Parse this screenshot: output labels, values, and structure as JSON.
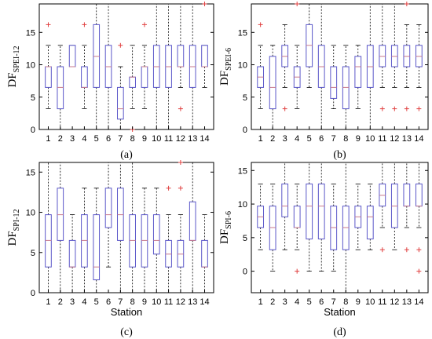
{
  "chart_data": [
    {
      "type": "boxplot",
      "panel_label": "(a)",
      "ylabel_main": "DF",
      "ylabel_sub": "SPEI-12",
      "xlabel": "",
      "categories": [
        "1",
        "2",
        "3",
        "4",
        "5",
        "6",
        "7",
        "8",
        "9",
        "10",
        "11",
        "12",
        "13",
        "14"
      ],
      "ylim": [
        0,
        19.4
      ],
      "yticks": [
        0,
        5,
        10,
        15
      ],
      "boxes": [
        {
          "station": "1",
          "whisker_low": 3.2,
          "q1": 6.5,
          "median": 9.7,
          "q3": 9.7,
          "whisker_high": 13,
          "outliers": [
            16.2
          ]
        },
        {
          "station": "2",
          "whisker_low": 0,
          "q1": 3.2,
          "median": 6.5,
          "q3": 9.7,
          "whisker_high": 13,
          "outliers": []
        },
        {
          "station": "3",
          "whisker_low": 9.7,
          "q1": 9.7,
          "median": 9.7,
          "q3": 13,
          "whisker_high": 13,
          "outliers": []
        },
        {
          "station": "4",
          "whisker_low": 3.2,
          "q1": 6.5,
          "median": 6.5,
          "q3": 9.7,
          "whisker_high": 13,
          "outliers": [
            16.2
          ]
        },
        {
          "station": "5",
          "whisker_low": 0,
          "q1": 6.5,
          "median": 11.3,
          "q3": 16.2,
          "whisker_high": 19.4,
          "outliers": []
        },
        {
          "station": "6",
          "whisker_low": 0,
          "q1": 6.5,
          "median": 9.7,
          "q3": 13,
          "whisker_high": 19.4,
          "outliers": []
        },
        {
          "station": "7",
          "whisker_low": 0,
          "q1": 1.6,
          "median": 3.2,
          "q3": 6.5,
          "whisker_high": 9.7,
          "outliers": [
            13
          ]
        },
        {
          "station": "8",
          "whisker_low": 3.2,
          "q1": 6.5,
          "median": 8.1,
          "q3": 8.1,
          "whisker_high": 13,
          "outliers": [
            0
          ]
        },
        {
          "station": "9",
          "whisker_low": 3.2,
          "q1": 6.5,
          "median": 9.7,
          "q3": 9.7,
          "whisker_high": 13,
          "outliers": [
            16.2
          ]
        },
        {
          "station": "10",
          "whisker_low": 0,
          "q1": 6.5,
          "median": 9.7,
          "q3": 13,
          "whisker_high": 19.4,
          "outliers": []
        },
        {
          "station": "11",
          "whisker_low": 0,
          "q1": 6.5,
          "median": 9.7,
          "q3": 13,
          "whisker_high": 19.4,
          "outliers": []
        },
        {
          "station": "12",
          "whisker_low": 6.5,
          "q1": 9.7,
          "median": 9.7,
          "q3": 13,
          "whisker_high": 19.4,
          "outliers": [
            3.2
          ]
        },
        {
          "station": "13",
          "whisker_low": 0,
          "q1": 6.5,
          "median": 9.7,
          "q3": 13,
          "whisker_high": 19.4,
          "outliers": []
        },
        {
          "station": "14",
          "whisker_low": 6.5,
          "q1": 9.7,
          "median": 9.7,
          "q3": 13,
          "whisker_high": 13,
          "outliers": [
            19.4
          ]
        }
      ]
    },
    {
      "type": "boxplot",
      "panel_label": "(b)",
      "ylabel_main": "DF",
      "ylabel_sub": "SPEI-6",
      "xlabel": "",
      "categories": [
        "1",
        "2",
        "3",
        "4",
        "5",
        "6",
        "7",
        "8",
        "9",
        "10",
        "11",
        "12",
        "13",
        "14"
      ],
      "ylim": [
        0,
        19.4
      ],
      "yticks": [
        0,
        5,
        10,
        15
      ],
      "boxes": [
        {
          "station": "1",
          "whisker_low": 3.2,
          "q1": 6.5,
          "median": 8.1,
          "q3": 9.7,
          "whisker_high": 13,
          "outliers": [
            16.2
          ]
        },
        {
          "station": "2",
          "whisker_low": 0,
          "q1": 3.2,
          "median": 6.5,
          "q3": 11.3,
          "whisker_high": 13,
          "outliers": []
        },
        {
          "station": "3",
          "whisker_low": 6.5,
          "q1": 9.7,
          "median": 11.3,
          "q3": 13,
          "whisker_high": 16.2,
          "outliers": [
            3.2
          ]
        },
        {
          "station": "4",
          "whisker_low": 3.2,
          "q1": 6.5,
          "median": 8.1,
          "q3": 9.7,
          "whisker_high": 13,
          "outliers": [
            19.4
          ]
        },
        {
          "station": "5",
          "whisker_low": 6.5,
          "q1": 9.7,
          "median": 13,
          "q3": 16.2,
          "whisker_high": 19.4,
          "outliers": []
        },
        {
          "station": "6",
          "whisker_low": 0,
          "q1": 6.5,
          "median": 9.7,
          "q3": 13,
          "whisker_high": 19.4,
          "outliers": []
        },
        {
          "station": "7",
          "whisker_low": 3.2,
          "q1": 4.8,
          "median": 6.5,
          "q3": 9.7,
          "whisker_high": 13,
          "outliers": []
        },
        {
          "station": "8",
          "whisker_low": 0,
          "q1": 3.2,
          "median": 6.5,
          "q3": 9.7,
          "whisker_high": 13,
          "outliers": []
        },
        {
          "station": "9",
          "whisker_low": 3.2,
          "q1": 6.5,
          "median": 9.7,
          "q3": 11.3,
          "whisker_high": 13,
          "outliers": []
        },
        {
          "station": "10",
          "whisker_low": 0,
          "q1": 6.5,
          "median": 9.7,
          "q3": 13,
          "whisker_high": 19.4,
          "outliers": []
        },
        {
          "station": "11",
          "whisker_low": 6.5,
          "q1": 9.7,
          "median": 11.3,
          "q3": 13,
          "whisker_high": 19.4,
          "outliers": [
            3.2
          ]
        },
        {
          "station": "12",
          "whisker_low": 6.5,
          "q1": 9.7,
          "median": 11.3,
          "q3": 13,
          "whisker_high": 19.4,
          "outliers": [
            3.2
          ]
        },
        {
          "station": "13",
          "whisker_low": 6.5,
          "q1": 9.7,
          "median": 11.3,
          "q3": 13,
          "whisker_high": 16.2,
          "outliers": [
            3.2,
            19.4
          ]
        },
        {
          "station": "14",
          "whisker_low": 6.5,
          "q1": 9.7,
          "median": 11.3,
          "q3": 13,
          "whisker_high": 16.2,
          "outliers": [
            3.2
          ]
        }
      ]
    },
    {
      "type": "boxplot",
      "panel_label": "(c)",
      "ylabel_main": "DF",
      "ylabel_sub": "SPI-12",
      "xlabel": "Station",
      "categories": [
        "1",
        "2",
        "3",
        "4",
        "5",
        "6",
        "7",
        "8",
        "9",
        "10",
        "11",
        "12",
        "13",
        "14"
      ],
      "ylim": [
        0,
        16.2
      ],
      "yticks": [
        0,
        5,
        10,
        15
      ],
      "boxes": [
        {
          "station": "1",
          "whisker_low": 0,
          "q1": 3.2,
          "median": 6.5,
          "q3": 9.7,
          "whisker_high": 16.2,
          "outliers": []
        },
        {
          "station": "2",
          "whisker_low": 0,
          "q1": 6.5,
          "median": 9.7,
          "q3": 13,
          "whisker_high": 16.2,
          "outliers": []
        },
        {
          "station": "3",
          "whisker_low": 0,
          "q1": 3.2,
          "median": 3.2,
          "q3": 6.5,
          "whisker_high": 9.7,
          "outliers": []
        },
        {
          "station": "4",
          "whisker_low": 0,
          "q1": 3.2,
          "median": 6.5,
          "q3": 9.7,
          "whisker_high": 13,
          "outliers": []
        },
        {
          "station": "5",
          "whisker_low": 0,
          "q1": 1.6,
          "median": 3.2,
          "q3": 9.7,
          "whisker_high": 13,
          "outliers": []
        },
        {
          "station": "6",
          "whisker_low": 3.2,
          "q1": 8.1,
          "median": 9.7,
          "q3": 13,
          "whisker_high": 16.2,
          "outliers": []
        },
        {
          "station": "7",
          "whisker_low": 0,
          "q1": 6.5,
          "median": 9.7,
          "q3": 13,
          "whisker_high": 16.2,
          "outliers": []
        },
        {
          "station": "8",
          "whisker_low": 0,
          "q1": 3.2,
          "median": 6.5,
          "q3": 9.7,
          "whisker_high": 16.2,
          "outliers": []
        },
        {
          "station": "9",
          "whisker_low": 0,
          "q1": 3.2,
          "median": 6.5,
          "q3": 9.7,
          "whisker_high": 13,
          "outliers": []
        },
        {
          "station": "10",
          "whisker_low": 0,
          "q1": 4.8,
          "median": 6.5,
          "q3": 9.7,
          "whisker_high": 13,
          "outliers": []
        },
        {
          "station": "11",
          "whisker_low": 0,
          "q1": 3.2,
          "median": 4.8,
          "q3": 6.5,
          "whisker_high": 9.7,
          "outliers": [
            13
          ]
        },
        {
          "station": "12",
          "whisker_low": 0,
          "q1": 3.2,
          "median": 4.8,
          "q3": 6.5,
          "whisker_high": 9.7,
          "outliers": [
            13,
            16.2
          ]
        },
        {
          "station": "13",
          "whisker_low": 0,
          "q1": 6.5,
          "median": 6.5,
          "q3": 11.3,
          "whisker_high": 16.2,
          "outliers": []
        },
        {
          "station": "14",
          "whisker_low": 0,
          "q1": 3.2,
          "median": 3.2,
          "q3": 6.5,
          "whisker_high": 9.7,
          "outliers": []
        }
      ]
    },
    {
      "type": "boxplot",
      "panel_label": "(d)",
      "ylabel_main": "DF",
      "ylabel_sub": "SPI-6",
      "xlabel": "Station",
      "categories": [
        "1",
        "2",
        "3",
        "4",
        "5",
        "6",
        "7",
        "8",
        "9",
        "10",
        "11",
        "12",
        "13",
        "14"
      ],
      "ylim": [
        -3.2,
        16.2
      ],
      "yticks": [
        0,
        5,
        10,
        15
      ],
      "boxes": [
        {
          "station": "1",
          "whisker_low": 3.2,
          "q1": 6.5,
          "median": 8.1,
          "q3": 9.7,
          "whisker_high": 13,
          "outliers": []
        },
        {
          "station": "2",
          "whisker_low": 0,
          "q1": 3.2,
          "median": 6.5,
          "q3": 9.7,
          "whisker_high": 13,
          "outliers": []
        },
        {
          "station": "3",
          "whisker_low": 3.2,
          "q1": 8.1,
          "median": 9.7,
          "q3": 13,
          "whisker_high": 16.2,
          "outliers": []
        },
        {
          "station": "4",
          "whisker_low": 3.2,
          "q1": 6.5,
          "median": 6.5,
          "q3": 9.7,
          "whisker_high": 13,
          "outliers": [
            0
          ]
        },
        {
          "station": "5",
          "whisker_low": 0,
          "q1": 4.8,
          "median": 9.7,
          "q3": 13,
          "whisker_high": 16.2,
          "outliers": []
        },
        {
          "station": "6",
          "whisker_low": 0,
          "q1": 4.8,
          "median": 9.7,
          "q3": 13,
          "whisker_high": 16.2,
          "outliers": []
        },
        {
          "station": "7",
          "whisker_low": 0,
          "q1": 3.2,
          "median": 6.5,
          "q3": 9.7,
          "whisker_high": 13,
          "outliers": []
        },
        {
          "station": "8",
          "whisker_low": -3.2,
          "q1": 3.2,
          "median": 6.5,
          "q3": 9.7,
          "whisker_high": 16.2,
          "outliers": []
        },
        {
          "station": "9",
          "whisker_low": 3.2,
          "q1": 6.5,
          "median": 8.1,
          "q3": 9.7,
          "whisker_high": 13,
          "outliers": []
        },
        {
          "station": "10",
          "whisker_low": 3.2,
          "q1": 4.8,
          "median": 8.1,
          "q3": 9.7,
          "whisker_high": 13,
          "outliers": []
        },
        {
          "station": "11",
          "whisker_low": 6.5,
          "q1": 9.7,
          "median": 11.3,
          "q3": 13,
          "whisker_high": 16.2,
          "outliers": [
            3.2
          ]
        },
        {
          "station": "12",
          "whisker_low": 3.2,
          "q1": 6.5,
          "median": 9.7,
          "q3": 13,
          "whisker_high": 16.2,
          "outliers": []
        },
        {
          "station": "13",
          "whisker_low": 6.5,
          "q1": 9.7,
          "median": 9.7,
          "q3": 13,
          "whisker_high": 16.2,
          "outliers": [
            3.2
          ]
        },
        {
          "station": "14",
          "whisker_low": 6.5,
          "q1": 9.7,
          "median": 9.7,
          "q3": 13,
          "whisker_high": 16.2,
          "outliers": [
            0,
            3.2
          ]
        }
      ]
    }
  ],
  "colors": {
    "box": "#5b57c9",
    "median": "#c77a8f",
    "outlier": "#e04040",
    "whisker": "#000000",
    "axis": "#000000"
  }
}
